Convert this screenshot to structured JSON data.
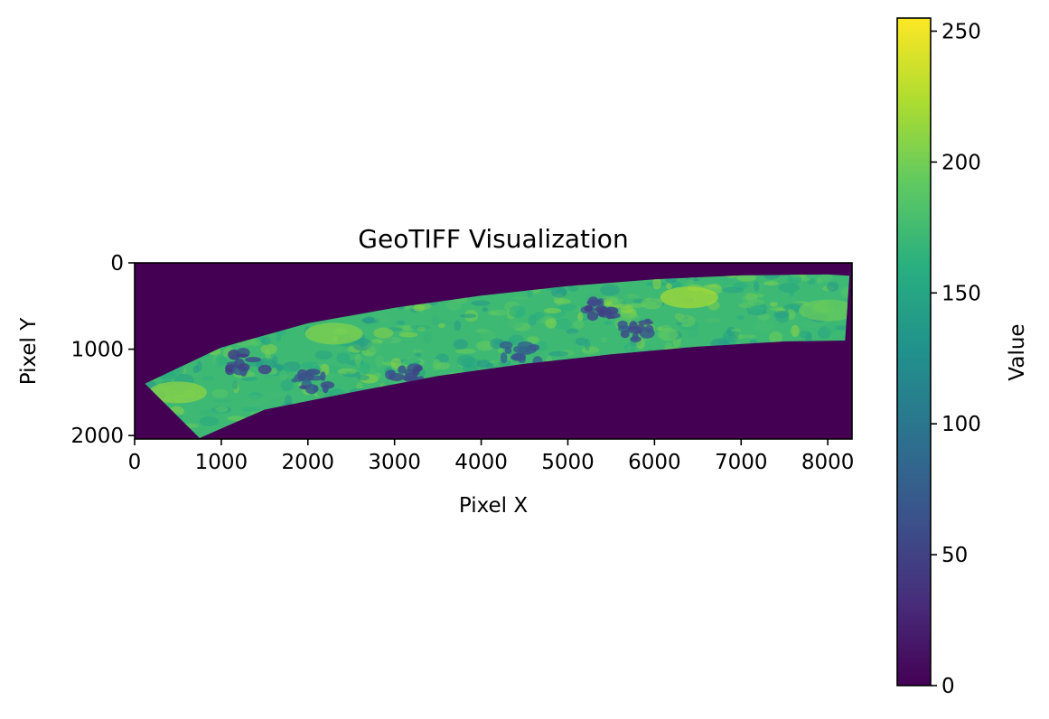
{
  "chart_data": {
    "type": "heatmap",
    "title": "GeoTIFF Visualization",
    "xlabel": "Pixel X",
    "ylabel": "Pixel Y",
    "xlim": [
      0,
      8280
    ],
    "ylim": [
      2040,
      0
    ],
    "x_ticks": [
      0,
      1000,
      2000,
      3000,
      4000,
      5000,
      6000,
      7000,
      8000
    ],
    "y_ticks": [
      0,
      1000,
      2000
    ],
    "colormap": "viridis",
    "colorbar": {
      "label": "Value",
      "min": 0,
      "max": 255,
      "ticks": [
        0,
        50,
        100,
        150,
        200,
        250
      ]
    },
    "background_value": 0,
    "swath": {
      "top_edge": [
        [
          120,
          1400
        ],
        [
          1000,
          980
        ],
        [
          2000,
          700
        ],
        [
          3000,
          520
        ],
        [
          4000,
          380
        ],
        [
          5000,
          270
        ],
        [
          6000,
          190
        ],
        [
          7000,
          145
        ],
        [
          8000,
          135
        ],
        [
          8250,
          150
        ]
      ],
      "bottom_edge": [
        [
          750,
          2030
        ],
        [
          1500,
          1700
        ],
        [
          2500,
          1500
        ],
        [
          3500,
          1310
        ],
        [
          4500,
          1170
        ],
        [
          5500,
          1060
        ],
        [
          6500,
          970
        ],
        [
          7500,
          910
        ],
        [
          8200,
          900
        ]
      ],
      "typical_value_range": [
        130,
        215
      ],
      "dark_cloud_regions": [
        {
          "x": 1300,
          "y": 1150,
          "value": 60
        },
        {
          "x": 2050,
          "y": 1350,
          "value": 70
        },
        {
          "x": 3150,
          "y": 1330,
          "value": 65
        },
        {
          "x": 5400,
          "y": 530,
          "value": 55
        },
        {
          "x": 5800,
          "y": 770,
          "value": 70
        },
        {
          "x": 4450,
          "y": 1050,
          "value": 80
        }
      ],
      "bright_regions": [
        {
          "x": 500,
          "y": 1500,
          "value": 210
        },
        {
          "x": 2300,
          "y": 820,
          "value": 205
        },
        {
          "x": 6400,
          "y": 400,
          "value": 220
        },
        {
          "x": 8000,
          "y": 550,
          "value": 195
        }
      ]
    }
  }
}
